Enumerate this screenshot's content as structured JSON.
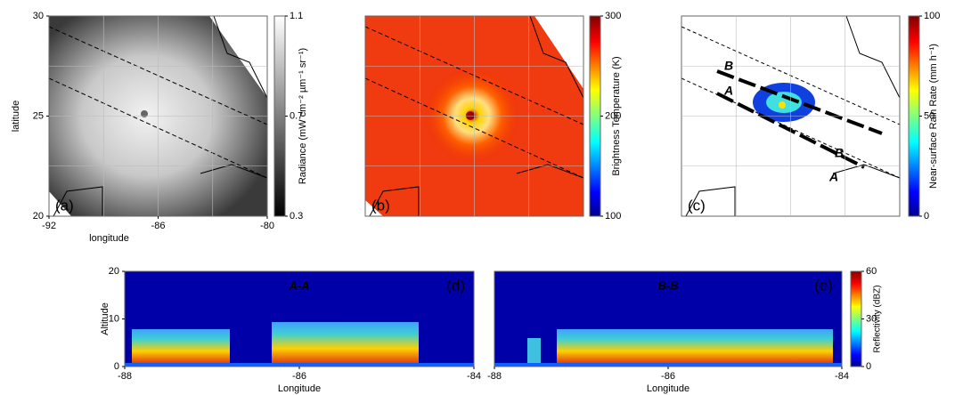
{
  "chart_data": [
    {
      "type": "image",
      "panel_label": "(a)",
      "x_label": "longitude",
      "y_label": "latitude",
      "xlim": [
        -92,
        -80
      ],
      "xticks": [
        -92,
        -86,
        -80
      ],
      "ylim": [
        20,
        30
      ],
      "yticks": [
        20,
        25,
        30
      ],
      "colorbar": {
        "label": "Radiance (mW cm⁻² µm⁻¹ sr⁻¹)",
        "lim": [
          0.3,
          1.1
        ],
        "ticks": [
          0.3,
          0.7,
          1.1
        ],
        "colormap": "gray"
      }
    },
    {
      "type": "image",
      "panel_label": "(b)",
      "colorbar": {
        "label": "Brightness Temperature (K)",
        "lim": [
          100,
          300
        ],
        "ticks": [
          100,
          200,
          300
        ],
        "colormap": "jet"
      }
    },
    {
      "type": "image",
      "panel_label": "(c)",
      "section_labels": [
        "B",
        "A",
        "B",
        "A"
      ],
      "colorbar": {
        "label": "Near-surface Rain Rate (mm h⁻¹)",
        "lim": [
          0,
          100
        ],
        "ticks": [
          0,
          50,
          100
        ],
        "colormap": "jet"
      }
    },
    {
      "type": "image",
      "panel_label": "(d)",
      "title": "A-A",
      "x_label": "Longitude",
      "y_label": "Altitude",
      "xlim": [
        -88,
        -84
      ],
      "xticks": [
        -88,
        -86,
        -84
      ],
      "ylim": [
        0,
        20
      ],
      "yticks": [
        0,
        10,
        20
      ]
    },
    {
      "type": "image",
      "panel_label": "(e)",
      "title": "B-B",
      "x_label": "Longitude",
      "xlim": [
        -88,
        -84
      ],
      "xticks": [
        -88,
        -86,
        -84
      ],
      "colorbar": {
        "label": "Reflectivity (dBZ)",
        "lim": [
          0,
          60
        ],
        "ticks": [
          0,
          30,
          60
        ],
        "colormap": "jet"
      }
    }
  ]
}
